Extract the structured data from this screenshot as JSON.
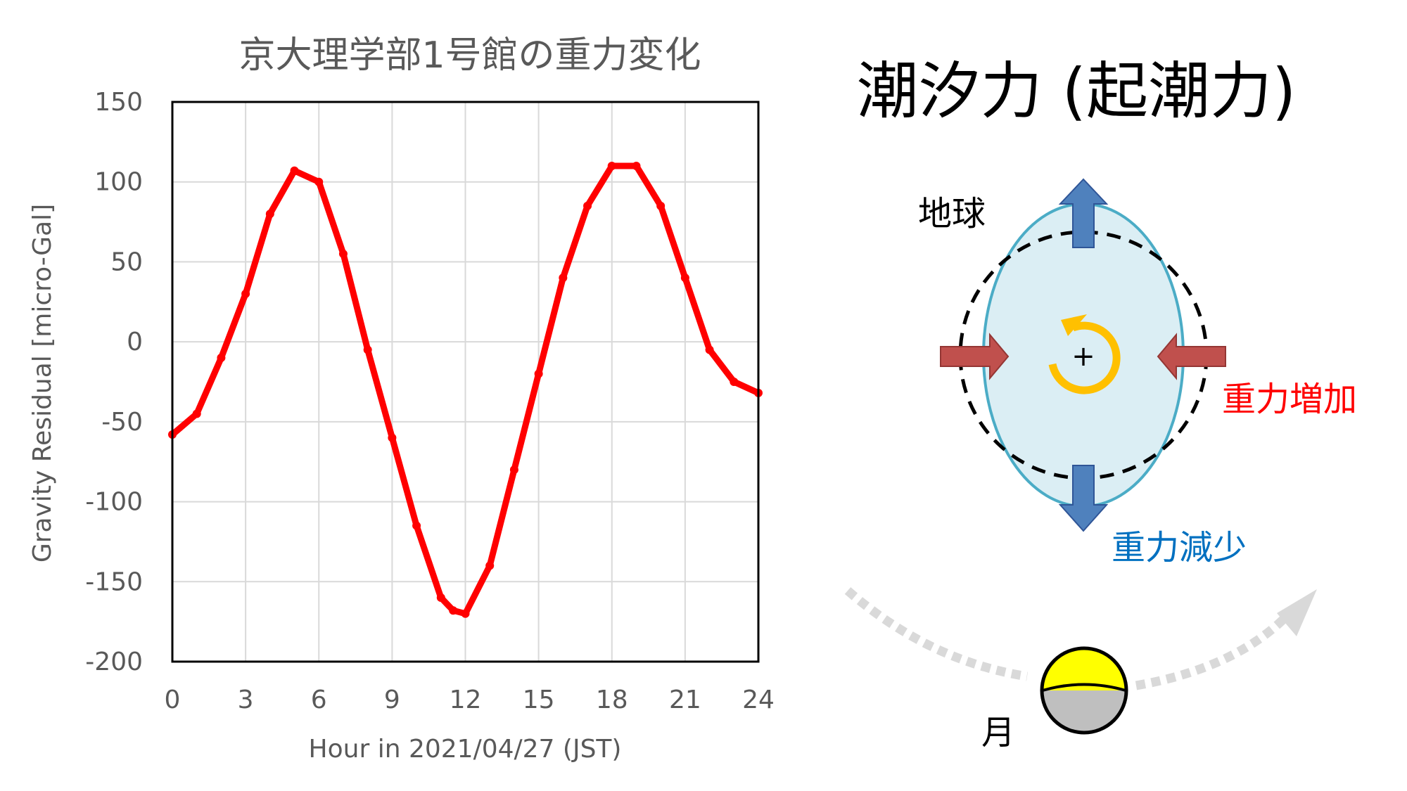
{
  "chart_data": {
    "type": "scatter",
    "title": "京大理学部1号館の重力変化",
    "xlabel": "Hour in 2021/04/27 (JST)",
    "ylabel": "Gravity Residual [micro-Gal]",
    "xlim": [
      0,
      24
    ],
    "ylim": [
      -200,
      150
    ],
    "x_ticks": [
      "0",
      "3",
      "6",
      "9",
      "12",
      "15",
      "18",
      "21",
      "24"
    ],
    "y_ticks": [
      "150",
      "100",
      "50",
      "0",
      "-50",
      "-100",
      "-150",
      "-200"
    ],
    "grid": true,
    "series": [
      {
        "color": "#ff0000",
        "x": [
          0,
          1,
          2,
          3,
          4,
          5,
          6,
          7,
          8,
          9,
          10,
          11,
          11.5,
          12,
          13,
          14,
          15,
          16,
          17,
          18,
          19,
          20,
          21,
          22,
          23,
          24
        ],
        "y": [
          -58,
          -45,
          -10,
          30,
          80,
          107,
          100,
          55,
          -5,
          -60,
          -115,
          -160,
          -168,
          -170,
          -140,
          -80,
          -20,
          40,
          85,
          110,
          110,
          85,
          40,
          -5,
          -25,
          -32
        ]
      }
    ]
  },
  "diagram": {
    "heading": "潮汐力 (起潮力)",
    "earth_label": "地球",
    "center_mark": "+",
    "increase_label": "重力増加",
    "decrease_label": "重力減少",
    "moon_label": "月",
    "colors": {
      "increase": "#ff0000",
      "decrease": "#0070c0",
      "earth_fill": "#dbeef4",
      "earth_stroke": "#4bacc6",
      "up_down_arrows": "#4f81bd",
      "side_arrows": "#c0504d",
      "rotation": "#ffc000",
      "moon_lit": "#ffff00",
      "moon_dark": "#bfbfbf",
      "orbit": "#d9d9d9"
    }
  }
}
